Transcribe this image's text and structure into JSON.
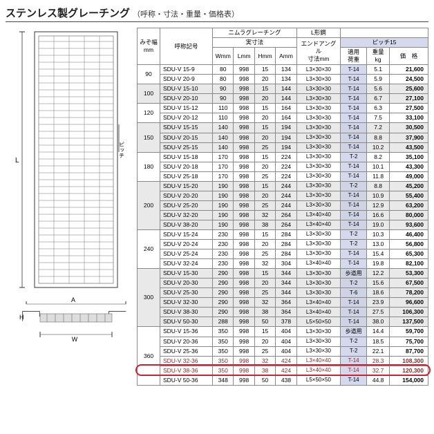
{
  "title": "ステンレス製グレーチング",
  "subtitle": "（呼称・寸法・重量・価格表）",
  "headers": {
    "mizo": "みぞ幅\nmm",
    "model": "呼称記号",
    "nimura": "ニムラグレーチング",
    "lkou": "L形鋼",
    "jissun": "実寸法",
    "endangle": "エンドアングル\n寸法mm",
    "pitch": "ピッチ15",
    "w": "Wmm",
    "l": "Lmm",
    "h": "Hmm",
    "a": "Amm",
    "load": "適用\n荷重",
    "weight": "重量\nkg",
    "price": "価　格"
  },
  "diagram_labels": {
    "L": "L",
    "pitch": "ピッチ",
    "A": "A",
    "W": "W",
    "H": "H"
  },
  "groups": [
    {
      "mizo": "90",
      "shade": false,
      "rows": [
        {
          "m": "SDU-V 15-9",
          "w": "80",
          "l": "998",
          "h": "15",
          "a": "134",
          "e": "L3×30×30",
          "t": "T-14",
          "kg": "5.1",
          "p": "21,600"
        },
        {
          "m": "SDU-V 20-9",
          "w": "80",
          "l": "998",
          "h": "20",
          "a": "134",
          "e": "L3×30×30",
          "t": "T-14",
          "kg": "5.9",
          "p": "24,500"
        }
      ]
    },
    {
      "mizo": "100",
      "shade": true,
      "rows": [
        {
          "m": "SDU-V 15-10",
          "w": "90",
          "l": "998",
          "h": "15",
          "a": "144",
          "e": "L3×30×30",
          "t": "T-14",
          "kg": "5.6",
          "p": "25,600"
        },
        {
          "m": "SDU-V 20-10",
          "w": "90",
          "l": "998",
          "h": "20",
          "a": "144",
          "e": "L3×30×30",
          "t": "T-14",
          "kg": "6.7",
          "p": "27,100"
        }
      ]
    },
    {
      "mizo": "120",
      "shade": false,
      "rows": [
        {
          "m": "SDU-V 15-12",
          "w": "110",
          "l": "998",
          "h": "15",
          "a": "164",
          "e": "L3×30×30",
          "t": "T-14",
          "kg": "6.3",
          "p": "27,500"
        },
        {
          "m": "SDU-V 20-12",
          "w": "110",
          "l": "998",
          "h": "20",
          "a": "164",
          "e": "L3×30×30",
          "t": "T-14",
          "kg": "7.5",
          "p": "33,100"
        }
      ]
    },
    {
      "mizo": "150",
      "shade": true,
      "rows": [
        {
          "m": "SDU-V 15-15",
          "w": "140",
          "l": "998",
          "h": "15",
          "a": "194",
          "e": "L3×30×30",
          "t": "T-14",
          "kg": "7.2",
          "p": "30,500"
        },
        {
          "m": "SDU-V 20-15",
          "w": "140",
          "l": "998",
          "h": "20",
          "a": "194",
          "e": "L3×30×30",
          "t": "T-14",
          "kg": "8.8",
          "p": "37,900"
        },
        {
          "m": "SDU-V 25-15",
          "w": "140",
          "l": "998",
          "h": "25",
          "a": "194",
          "e": "L3×30×30",
          "t": "T-14",
          "kg": "10.2",
          "p": "43,500"
        }
      ]
    },
    {
      "mizo": "180",
      "shade": false,
      "rows": [
        {
          "m": "SDU-V 15-18",
          "w": "170",
          "l": "998",
          "h": "15",
          "a": "224",
          "e": "L3×30×30",
          "t": "T-2",
          "kg": "8.2",
          "p": "35,100"
        },
        {
          "m": "SDU-V 20-18",
          "w": "170",
          "l": "998",
          "h": "20",
          "a": "224",
          "e": "L3×30×30",
          "t": "T-14",
          "kg": "10.1",
          "p": "43,300"
        },
        {
          "m": "SDU-V 25-18",
          "w": "170",
          "l": "998",
          "h": "25",
          "a": "224",
          "e": "L3×30×30",
          "t": "T-14",
          "kg": "11.8",
          "p": "49,000"
        }
      ]
    },
    {
      "mizo": "200",
      "shade": true,
      "rows": [
        {
          "m": "SDU-V 15-20",
          "w": "190",
          "l": "998",
          "h": "15",
          "a": "244",
          "e": "L3×30×30",
          "t": "T-2",
          "kg": "8.8",
          "p": "45,200"
        },
        {
          "m": "SDU-V 20-20",
          "w": "190",
          "l": "998",
          "h": "20",
          "a": "244",
          "e": "L3×30×30",
          "t": "T-14",
          "kg": "10.9",
          "p": "55,400"
        },
        {
          "m": "SDU-V 25-20",
          "w": "190",
          "l": "998",
          "h": "25",
          "a": "244",
          "e": "L3×30×30",
          "t": "T-14",
          "kg": "12.9",
          "p": "63,200"
        },
        {
          "m": "SDU-V 32-20",
          "w": "190",
          "l": "998",
          "h": "32",
          "a": "264",
          "e": "L3×40×40",
          "t": "T-14",
          "kg": "16.6",
          "p": "80,000"
        },
        {
          "m": "SDU-V 38-20",
          "w": "190",
          "l": "998",
          "h": "38",
          "a": "264",
          "e": "L3×40×40",
          "t": "T-14",
          "kg": "19.0",
          "p": "93,600"
        }
      ]
    },
    {
      "mizo": "240",
      "shade": false,
      "rows": [
        {
          "m": "SDU-V 15-24",
          "w": "230",
          "l": "998",
          "h": "15",
          "a": "284",
          "e": "L3×30×30",
          "t": "T-2",
          "kg": "10.3",
          "p": "46,400"
        },
        {
          "m": "SDU-V 20-24",
          "w": "230",
          "l": "998",
          "h": "20",
          "a": "284",
          "e": "L3×30×30",
          "t": "T-2",
          "kg": "13.0",
          "p": "56,800"
        },
        {
          "m": "SDU-V 25-24",
          "w": "230",
          "l": "998",
          "h": "25",
          "a": "284",
          "e": "L3×30×30",
          "t": "T-14",
          "kg": "15.4",
          "p": "65,300"
        },
        {
          "m": "SDU-V 32-24",
          "w": "230",
          "l": "998",
          "h": "32",
          "a": "304",
          "e": "L3×40×40",
          "t": "T-14",
          "kg": "19.8",
          "p": "82,100"
        }
      ]
    },
    {
      "mizo": "300",
      "shade": true,
      "rows": [
        {
          "m": "SDU-V 15-30",
          "w": "290",
          "l": "998",
          "h": "15",
          "a": "344",
          "e": "L3×30×30",
          "t": "歩道用",
          "kg": "12.2",
          "p": "53,300"
        },
        {
          "m": "SDU-V 20-30",
          "w": "290",
          "l": "998",
          "h": "20",
          "a": "344",
          "e": "L3×30×30",
          "t": "T-2",
          "kg": "15.6",
          "p": "67,500"
        },
        {
          "m": "SDU-V 25-30",
          "w": "290",
          "l": "998",
          "h": "25",
          "a": "344",
          "e": "L3×30×30",
          "t": "T-6",
          "kg": "18.6",
          "p": "78,200"
        },
        {
          "m": "SDU-V 32-30",
          "w": "290",
          "l": "998",
          "h": "32",
          "a": "364",
          "e": "L3×40×40",
          "t": "T-14",
          "kg": "23.9",
          "p": "96,600"
        },
        {
          "m": "SDU-V 38-30",
          "w": "290",
          "l": "998",
          "h": "38",
          "a": "364",
          "e": "L3×40×40",
          "t": "T-14",
          "kg": "27.5",
          "p": "106,300"
        },
        {
          "m": "SDU-V 50-30",
          "w": "288",
          "l": "998",
          "h": "50",
          "a": "378",
          "e": "L5×50×50",
          "t": "T-14",
          "kg": "38.0",
          "p": "137,500"
        }
      ]
    },
    {
      "mizo": "360",
      "shade": false,
      "rows": [
        {
          "m": "SDU-V 15-36",
          "w": "350",
          "l": "998",
          "h": "15",
          "a": "404",
          "e": "L3×30×30",
          "t": "歩道用",
          "kg": "14.4",
          "p": "59,700"
        },
        {
          "m": "SDU-V 20-36",
          "w": "350",
          "l": "998",
          "h": "20",
          "a": "404",
          "e": "L3×30×30",
          "t": "T-2",
          "kg": "18.5",
          "p": "75,700"
        },
        {
          "m": "SDU-V 25-36",
          "w": "350",
          "l": "998",
          "h": "25",
          "a": "404",
          "e": "L3×30×30",
          "t": "T-2",
          "kg": "22.1",
          "p": "87,700"
        },
        {
          "m": "SDU-V 32-36",
          "w": "350",
          "l": "998",
          "h": "32",
          "a": "424",
          "e": "L3×40×40",
          "t": "T-14",
          "kg": "28.3",
          "p": "108,300",
          "hl": true
        },
        {
          "m": "SDU-V 38-36",
          "w": "350",
          "l": "998",
          "h": "38",
          "a": "424",
          "e": "L3×40×40",
          "t": "T-14",
          "kg": "32.7",
          "p": "120,300",
          "hl": true,
          "box": true
        },
        {
          "m": "SDU-V 50-36",
          "w": "348",
          "l": "998",
          "h": "50",
          "a": "438",
          "e": "L5×50×50",
          "t": "T-14",
          "kg": "44.8",
          "p": "154,000"
        }
      ]
    }
  ],
  "colwidths": [
    "26",
    "60",
    "24",
    "24",
    "24",
    "24",
    "50",
    "30",
    "26",
    "44"
  ]
}
